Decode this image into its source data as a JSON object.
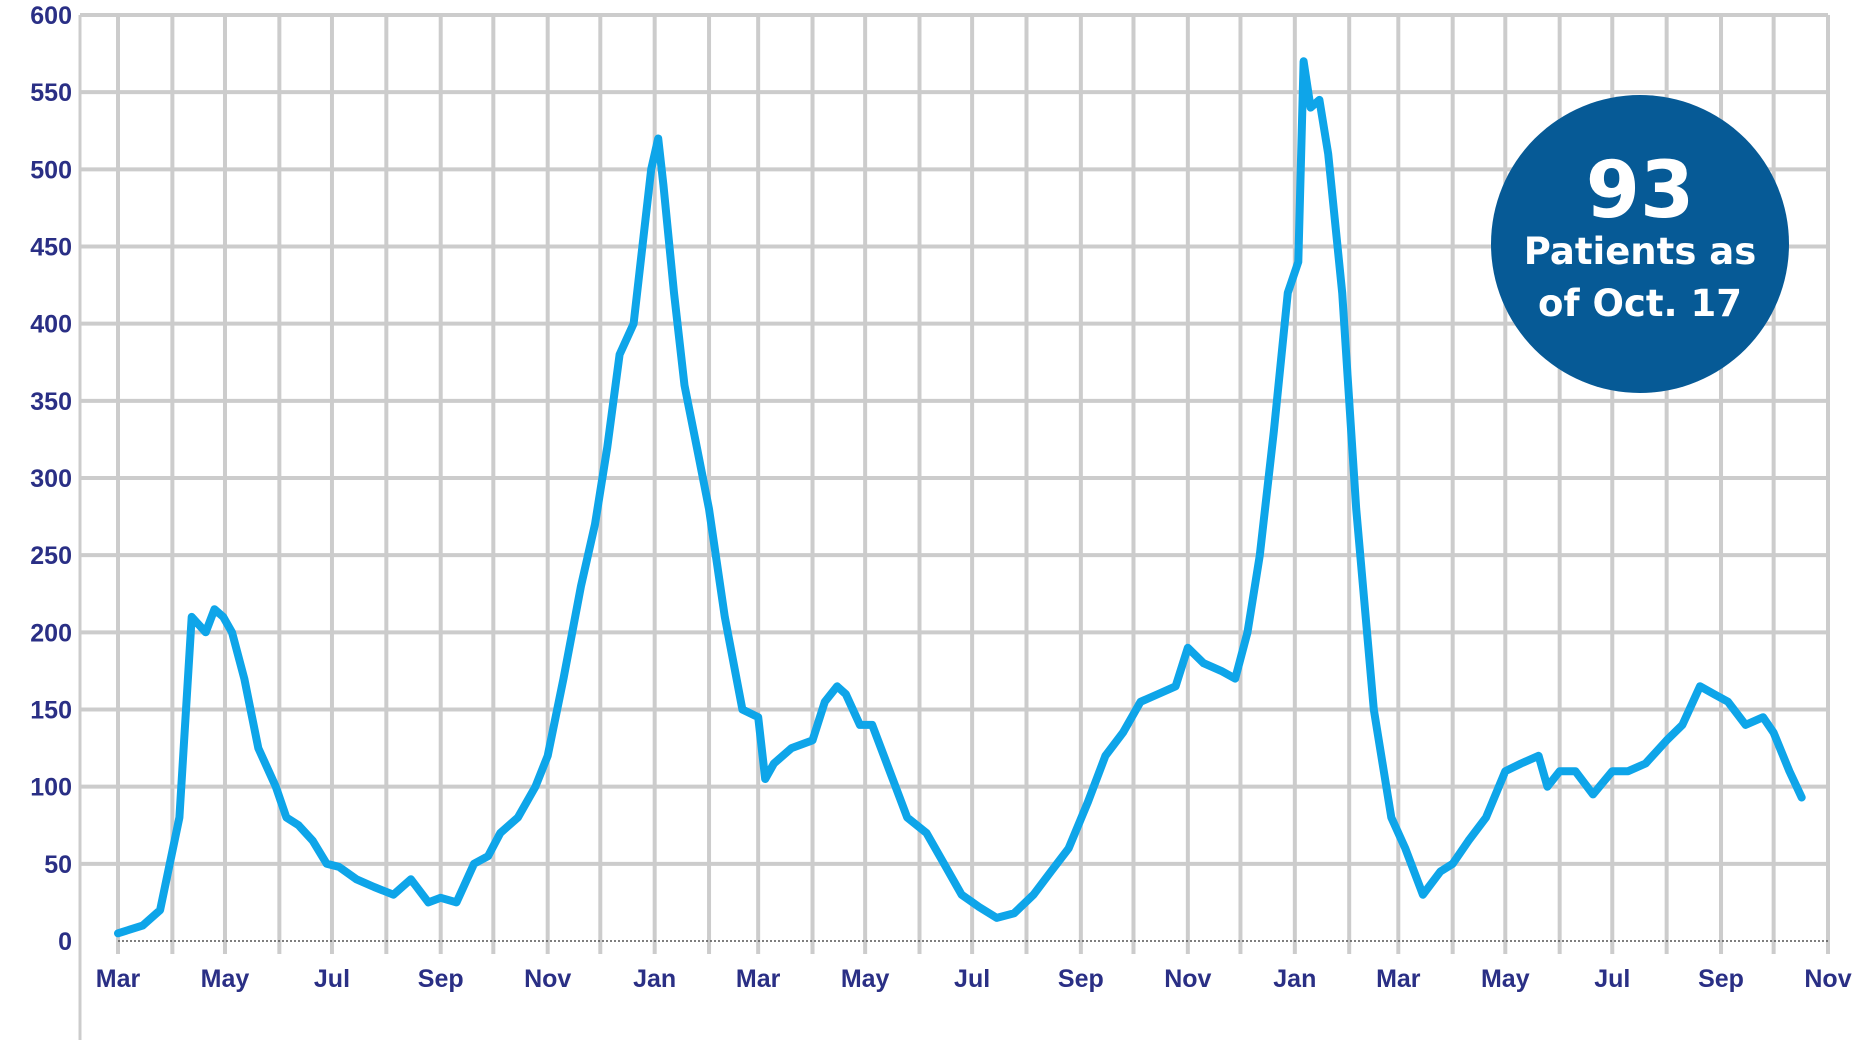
{
  "chart_data": {
    "type": "line",
    "title": "",
    "xlabel": "",
    "ylabel": "",
    "ylim": [
      0,
      600
    ],
    "y_ticks": [
      0,
      50,
      100,
      150,
      200,
      250,
      300,
      350,
      400,
      450,
      500,
      550,
      600
    ],
    "x_tick_labels": [
      "Mar",
      "May",
      "Jul",
      "Sep",
      "Nov",
      "Jan",
      "Mar",
      "May",
      "Jul",
      "Sep",
      "Nov",
      "Jan",
      "Mar",
      "May",
      "Jul",
      "Sep",
      "Nov"
    ],
    "x_tick_dates": [
      "2020-03-01",
      "2020-05-01",
      "2020-07-01",
      "2020-09-01",
      "2020-11-01",
      "2021-01-01",
      "2021-03-01",
      "2021-05-01",
      "2021-07-01",
      "2021-09-01",
      "2021-11-01",
      "2022-01-01",
      "2022-03-01",
      "2022-05-01",
      "2022-07-01",
      "2022-09-01",
      "2022-11-01"
    ],
    "grid": true,
    "line_color": "#0ea5e9",
    "grid_color": "#cccccc",
    "axis_label_color": "#2a2f85",
    "series": [
      {
        "x": [
          "2020-03-01",
          "2020-03-15",
          "2020-03-25",
          "2020-04-05",
          "2020-04-12",
          "2020-04-20",
          "2020-04-25",
          "2020-04-30",
          "2020-05-05",
          "2020-05-12",
          "2020-05-20",
          "2020-05-30",
          "2020-06-05",
          "2020-06-12",
          "2020-06-20",
          "2020-06-28",
          "2020-07-05",
          "2020-07-15",
          "2020-07-25",
          "2020-08-05",
          "2020-08-15",
          "2020-08-25",
          "2020-09-01",
          "2020-09-10",
          "2020-09-20",
          "2020-09-28",
          "2020-10-05",
          "2020-10-15",
          "2020-10-25",
          "2020-11-01",
          "2020-11-10",
          "2020-11-20",
          "2020-11-28",
          "2020-12-05",
          "2020-12-12",
          "2020-12-20",
          "2020-12-25",
          "2020-12-30",
          "2021-01-03",
          "2021-01-06",
          "2021-01-12",
          "2021-01-18",
          "2021-01-25",
          "2021-02-01",
          "2021-02-10",
          "2021-02-20",
          "2021-03-01",
          "2021-03-05",
          "2021-03-10",
          "2021-03-20",
          "2021-04-01",
          "2021-04-08",
          "2021-04-15",
          "2021-04-20",
          "2021-04-28",
          "2021-05-05",
          "2021-05-15",
          "2021-05-25",
          "2021-06-05",
          "2021-06-15",
          "2021-06-25",
          "2021-07-05",
          "2021-07-15",
          "2021-07-25",
          "2021-08-05",
          "2021-08-15",
          "2021-08-25",
          "2021-09-05",
          "2021-09-15",
          "2021-09-25",
          "2021-10-05",
          "2021-10-15",
          "2021-10-25",
          "2021-11-01",
          "2021-11-10",
          "2021-11-20",
          "2021-11-28",
          "2021-12-05",
          "2021-12-12",
          "2021-12-20",
          "2021-12-28",
          "2022-01-03",
          "2022-01-06",
          "2022-01-10",
          "2022-01-15",
          "2022-01-20",
          "2022-01-28",
          "2022-02-05",
          "2022-02-15",
          "2022-02-25",
          "2022-03-05",
          "2022-03-15",
          "2022-03-25",
          "2022-04-01",
          "2022-04-10",
          "2022-04-20",
          "2022-05-01",
          "2022-05-10",
          "2022-05-20",
          "2022-05-25",
          "2022-06-01",
          "2022-06-10",
          "2022-06-20",
          "2022-07-01",
          "2022-07-10",
          "2022-07-20",
          "2022-08-01",
          "2022-08-10",
          "2022-08-20",
          "2022-08-28",
          "2022-09-05",
          "2022-09-15",
          "2022-09-25",
          "2022-10-01",
          "2022-10-10",
          "2022-10-17"
        ],
        "y": [
          5,
          10,
          20,
          80,
          210,
          200,
          215,
          210,
          200,
          170,
          125,
          100,
          80,
          75,
          65,
          50,
          48,
          40,
          35,
          30,
          40,
          25,
          28,
          25,
          50,
          55,
          70,
          80,
          100,
          120,
          170,
          230,
          270,
          320,
          380,
          400,
          450,
          500,
          520,
          490,
          420,
          360,
          320,
          280,
          210,
          150,
          145,
          105,
          115,
          125,
          130,
          155,
          165,
          160,
          140,
          140,
          110,
          80,
          70,
          50,
          30,
          22,
          15,
          18,
          30,
          45,
          60,
          90,
          120,
          135,
          155,
          160,
          165,
          190,
          180,
          175,
          170,
          200,
          250,
          330,
          420,
          440,
          570,
          540,
          545,
          510,
          420,
          280,
          150,
          80,
          60,
          30,
          45,
          50,
          65,
          80,
          110,
          115,
          120,
          100,
          110,
          110,
          95,
          110,
          110,
          115,
          130,
          140,
          165,
          160,
          155,
          140,
          145,
          135,
          110,
          93
        ]
      }
    ],
    "annotation": {
      "number": "93",
      "line1": "Patients as",
      "line2": "of Oct. 17",
      "color": "#065a96"
    }
  }
}
